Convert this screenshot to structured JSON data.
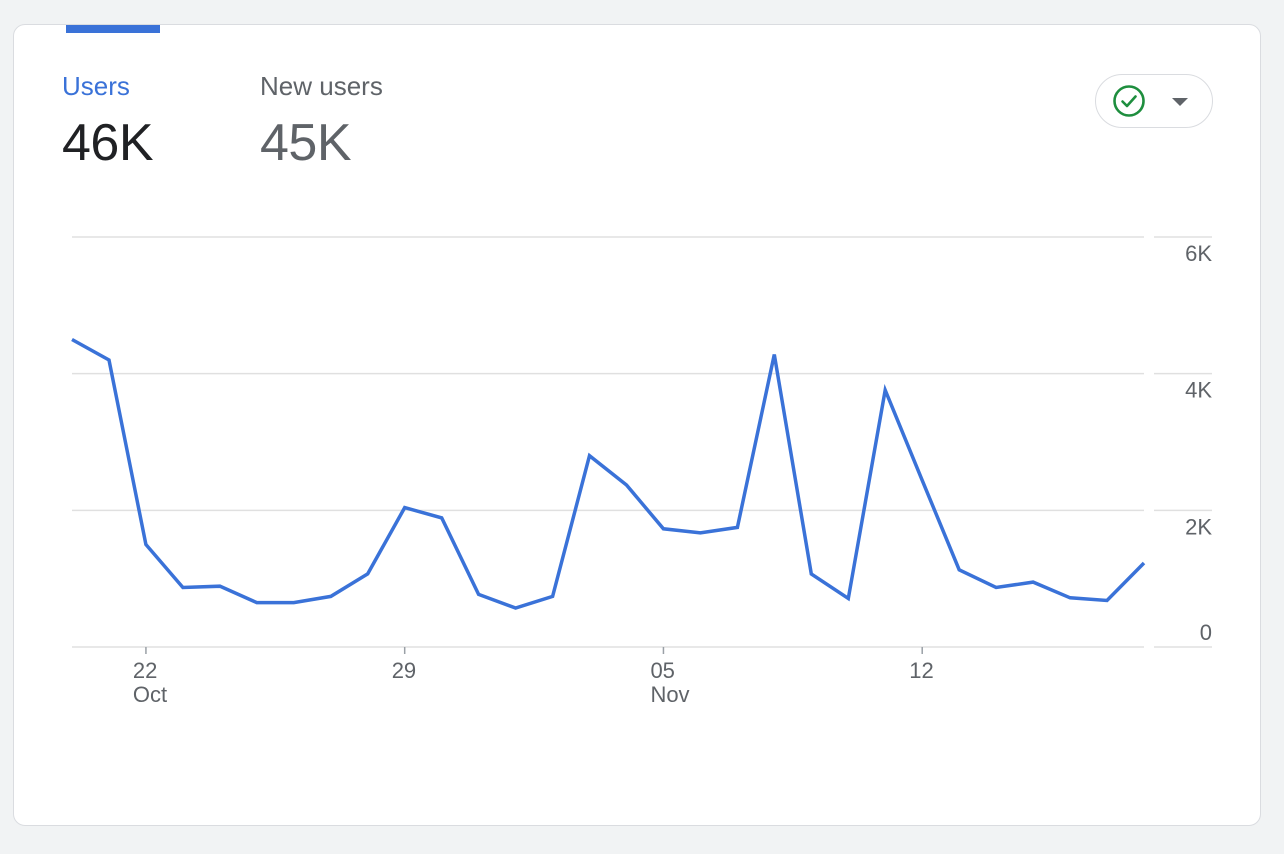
{
  "metrics": {
    "users": {
      "label": "Users",
      "value": "46K"
    },
    "new_users": {
      "label": "New users",
      "value": "45K"
    }
  },
  "status_dropdown": {
    "icon": "check-circle-icon",
    "caret": "caret-down-icon",
    "status_color": "#1e8e3e"
  },
  "colors": {
    "accent": "#3a72d8",
    "grid": "#e0e0e0",
    "text_secondary": "#5f6368"
  },
  "chart_data": {
    "type": "line",
    "title": "",
    "xlabel": "",
    "ylabel": "",
    "ylim": [
      0,
      6000
    ],
    "y_ticks": [
      {
        "value": 0,
        "label": "0"
      },
      {
        "value": 2000,
        "label": "2K"
      },
      {
        "value": 4000,
        "label": "4K"
      },
      {
        "value": 6000,
        "label": "6K"
      }
    ],
    "x_ticks": [
      {
        "day": "22",
        "month": "Oct",
        "date": "2023-10-22"
      },
      {
        "day": "29",
        "month": "",
        "date": "2023-10-29"
      },
      {
        "day": "05",
        "month": "Nov",
        "date": "2023-11-05"
      },
      {
        "day": "12",
        "month": "",
        "date": "2023-11-12"
      }
    ],
    "y_axis_position": "right",
    "grid": true,
    "legend": "none",
    "series": [
      {
        "color": "#3a72d8",
        "x": [
          "2023-10-20",
          "2023-10-21",
          "2023-10-22",
          "2023-10-23",
          "2023-10-24",
          "2023-10-25",
          "2023-10-26",
          "2023-10-27",
          "2023-10-28",
          "2023-10-29",
          "2023-10-30",
          "2023-10-31",
          "2023-11-01",
          "2023-11-02",
          "2023-11-03",
          "2023-11-04",
          "2023-11-05",
          "2023-11-06",
          "2023-11-07",
          "2023-11-08",
          "2023-11-09",
          "2023-11-10",
          "2023-11-11",
          "2023-11-12",
          "2023-11-13",
          "2023-11-14",
          "2023-11-15",
          "2023-11-16",
          "2023-11-17",
          "2023-11-18"
        ],
        "values": [
          4500,
          4200,
          1500,
          870,
          890,
          650,
          650,
          740,
          1070,
          2040,
          1890,
          770,
          570,
          740,
          2800,
          2370,
          1730,
          1670,
          1750,
          4280,
          1070,
          710,
          3760,
          2440,
          1130,
          870,
          950,
          720,
          680,
          1230
        ]
      }
    ]
  }
}
